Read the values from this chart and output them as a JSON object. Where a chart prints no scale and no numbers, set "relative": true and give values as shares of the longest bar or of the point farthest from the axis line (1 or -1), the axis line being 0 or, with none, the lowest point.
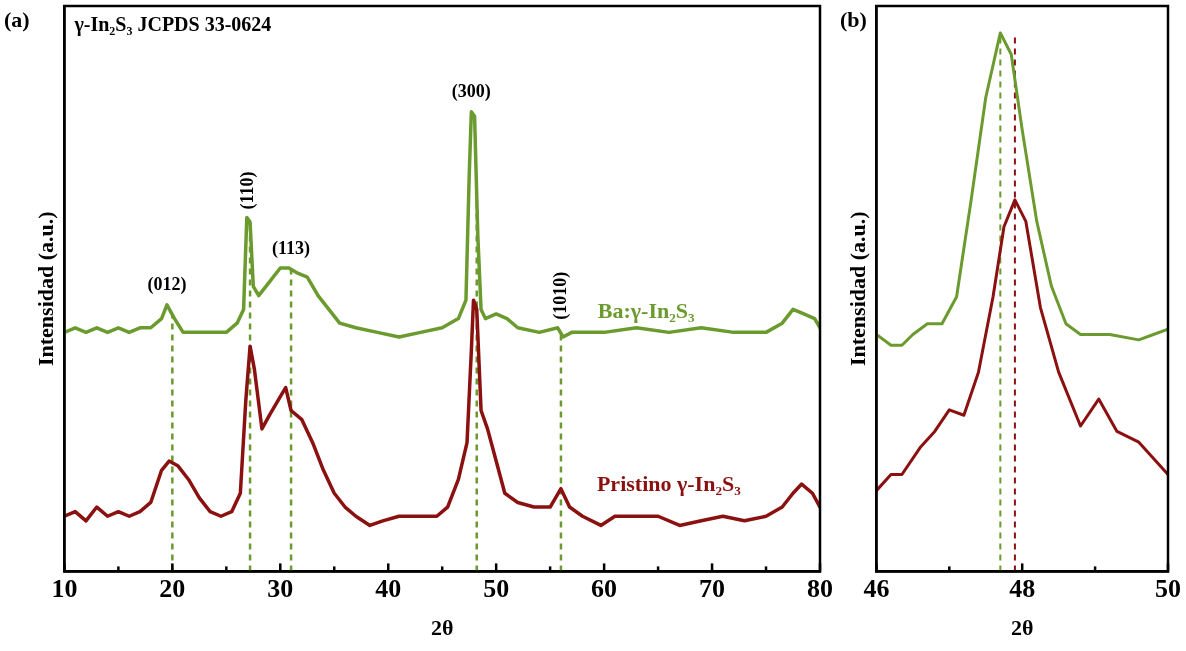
{
  "chart_data": [
    {
      "type": "line",
      "title": "γ-In₂S₃ JCPDS 33-0624",
      "xlabel": "2θ",
      "ylabel": "Intensidad (a.u.)",
      "relative": true,
      "legend": false,
      "line_style": "solid",
      "xlim": [
        10,
        80
      ],
      "xticks": [
        10,
        {
          "value": 15,
          "label": null
        },
        20,
        {
          "value": 25,
          "label": null
        },
        30,
        {
          "value": 35,
          "label": null
        },
        40,
        {
          "value": 45,
          "label": null
        },
        50,
        {
          "value": 55,
          "label": null
        },
        60,
        {
          "value": 65,
          "label": null
        },
        70,
        {
          "value": 75,
          "label": null
        },
        80
      ],
      "annotations": [
        "(a)",
        {
          "text": "(012)",
          "x": 19.5,
          "y": 0.58
        },
        {
          "text": "(110)",
          "x": 27,
          "y": 0.77
        },
        {
          "text": "(113)",
          "x": 31,
          "y": 0.66
        },
        {
          "text": "(300)",
          "x": 47.7,
          "y": 1
        },
        {
          "text": "(1010)",
          "x": 56,
          "y": 0.53
        }
      ],
      "ref_lines": [
        {
          "axis": "x",
          "value": 20,
          "color": "#6b9a2e",
          "line_style": "dashed"
        },
        {
          "axis": "x",
          "value": 27.2,
          "color": "#6b9a2e",
          "line_style": "dashed"
        },
        {
          "axis": "x",
          "value": 31,
          "color": "#6b9a2e",
          "line_style": "dashed"
        },
        {
          "axis": "x",
          "value": 48.2,
          "color": "#6b9a2e",
          "line_style": "dashed"
        },
        {
          "axis": "x",
          "value": 56,
          "color": "#6b9a2e",
          "line_style": "dashed"
        }
      ],
      "series": [
        {
          "name": "Ba:γ-In₂S₃",
          "color": "#6b9a2e",
          "x": [
            10,
            11,
            12,
            13,
            14,
            15,
            16,
            17,
            18,
            19,
            19.5,
            20.2,
            21,
            22,
            23,
            24,
            25,
            26,
            26.6,
            26.9,
            27.2,
            27.5,
            28,
            29,
            30,
            30.8,
            31.5,
            32.5,
            33.5,
            34.5,
            35.5,
            37,
            39,
            41,
            43,
            45,
            46.5,
            47.2,
            47.5,
            47.7,
            48,
            48.3,
            48.6,
            49,
            50,
            51,
            52,
            54,
            55.7,
            56.2,
            57,
            60,
            63,
            66,
            69,
            72,
            75,
            76.5,
            77.5,
            78.5,
            79.5,
            80
          ],
          "values": [
            0.52,
            0.53,
            0.52,
            0.53,
            0.52,
            0.53,
            0.52,
            0.53,
            0.53,
            0.55,
            0.58,
            0.55,
            0.52,
            0.52,
            0.52,
            0.52,
            0.52,
            0.54,
            0.57,
            0.77,
            0.76,
            0.62,
            0.6,
            0.63,
            0.66,
            0.66,
            0.65,
            0.64,
            0.6,
            0.57,
            0.54,
            0.53,
            0.52,
            0.51,
            0.52,
            0.53,
            0.55,
            0.59,
            0.86,
            1,
            0.99,
            0.73,
            0.57,
            0.55,
            0.56,
            0.55,
            0.53,
            0.52,
            0.53,
            0.51,
            0.52,
            0.52,
            0.53,
            0.52,
            0.53,
            0.52,
            0.52,
            0.54,
            0.57,
            0.56,
            0.55,
            0.53
          ]
        },
        {
          "name": "Pristino γ-In₂S₃",
          "color": "#8b1010",
          "x": [
            10,
            11,
            12,
            13,
            14,
            15,
            16,
            17,
            18,
            19,
            19.7,
            20.5,
            21.5,
            22.5,
            23.5,
            24.5,
            25.5,
            26.3,
            26.8,
            27.2,
            27.6,
            28.3,
            29,
            30,
            30.5,
            31,
            32,
            33,
            34,
            35,
            36,
            37,
            38.3,
            39.5,
            41,
            43,
            44.5,
            45.5,
            46.5,
            47.3,
            47.7,
            47.9,
            48.2,
            48.6,
            49.2,
            50,
            50.8,
            52,
            53.5,
            55,
            56,
            56.8,
            58,
            59.7,
            61,
            63,
            65,
            67,
            69,
            71,
            73,
            75,
            76.5,
            77.5,
            78.3,
            79.3,
            80
          ],
          "values": [
            0.12,
            0.13,
            0.11,
            0.14,
            0.12,
            0.13,
            0.12,
            0.13,
            0.15,
            0.22,
            0.24,
            0.23,
            0.2,
            0.16,
            0.13,
            0.12,
            0.13,
            0.17,
            0.37,
            0.49,
            0.44,
            0.31,
            0.34,
            0.38,
            0.4,
            0.35,
            0.33,
            0.28,
            0.22,
            0.17,
            0.14,
            0.12,
            0.1,
            0.11,
            0.12,
            0.12,
            0.12,
            0.14,
            0.2,
            0.28,
            0.48,
            0.59,
            0.57,
            0.35,
            0.31,
            0.24,
            0.17,
            0.15,
            0.14,
            0.14,
            0.18,
            0.14,
            0.12,
            0.1,
            0.12,
            0.12,
            0.12,
            0.1,
            0.11,
            0.12,
            0.11,
            0.12,
            0.14,
            0.17,
            0.19,
            0.17,
            0.14
          ]
        }
      ]
    },
    {
      "type": "line",
      "xlabel": "2θ",
      "ylabel": "Intensidad (a.u.)",
      "relative": true,
      "legend": false,
      "line_style": "solid",
      "xlim": [
        46,
        50
      ],
      "xticks": [
        46,
        {
          "value": 47,
          "label": null
        },
        48,
        {
          "value": 49,
          "label": null
        },
        50
      ],
      "annotations": [
        "(b)"
      ],
      "ref_lines": [
        {
          "axis": "x",
          "value": 47.7,
          "color": "#6b9a2e",
          "line_style": "dashed"
        },
        {
          "axis": "x",
          "value": 47.9,
          "color": "#8b1010",
          "line_style": "dashed"
        }
      ],
      "series": [
        {
          "color": "#6b9a2e",
          "x": [
            46,
            46.2,
            46.35,
            46.5,
            46.7,
            46.9,
            47.1,
            47.3,
            47.5,
            47.7,
            47.85,
            48,
            48.2,
            48.4,
            48.6,
            48.8,
            49.2,
            49.6,
            49.8,
            50
          ],
          "values": [
            0.44,
            0.42,
            0.42,
            0.44,
            0.46,
            0.46,
            0.51,
            0.69,
            0.88,
            1,
            0.96,
            0.82,
            0.65,
            0.53,
            0.46,
            0.44,
            0.44,
            0.43,
            0.44,
            0.45
          ]
        },
        {
          "color": "#8b1010",
          "x": [
            46,
            46.2,
            46.35,
            46.6,
            46.8,
            47,
            47.2,
            47.4,
            47.6,
            47.75,
            47.9,
            48.05,
            48.25,
            48.5,
            48.8,
            49.05,
            49.3,
            49.6,
            50
          ],
          "values": [
            0.15,
            0.18,
            0.18,
            0.23,
            0.26,
            0.3,
            0.29,
            0.37,
            0.51,
            0.64,
            0.69,
            0.65,
            0.49,
            0.37,
            0.27,
            0.32,
            0.26,
            0.24,
            0.18
          ]
        }
      ]
    }
  ]
}
